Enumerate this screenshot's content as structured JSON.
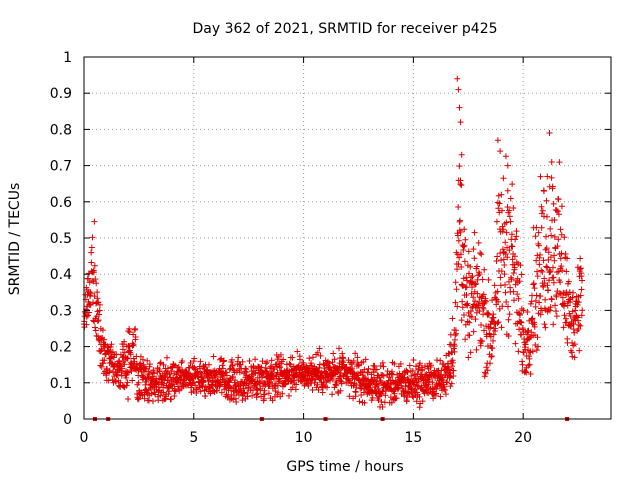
{
  "chart_data": {
    "type": "scatter",
    "title": "Day 362 of 2021, SRMTID for receiver p425",
    "xlabel": "GPS time / hours",
    "ylabel": "SRMTID / TECUs",
    "xlim": [
      0,
      24
    ],
    "ylim": [
      0,
      1
    ],
    "x_ticks": [
      0,
      5,
      10,
      15,
      20
    ],
    "x_tick_labels": [
      "0",
      "5",
      "10",
      "15",
      "20"
    ],
    "y_ticks": [
      0,
      0.1,
      0.2,
      0.3,
      0.4,
      0.5,
      0.6,
      0.7,
      0.8,
      0.9,
      1
    ],
    "y_tick_labels": [
      "0",
      "0.1",
      "0.2",
      "0.3",
      "0.4",
      "0.5",
      "0.6",
      "0.7",
      "0.8",
      "0.9",
      "1"
    ],
    "grid": true,
    "marker": "plus",
    "color": "#e00000",
    "series": [
      {
        "name": "SRMTID",
        "profile": [
          [
            0.0,
            0.3,
            0.06
          ],
          [
            0.2,
            0.32,
            0.08
          ],
          [
            0.4,
            0.42,
            0.1
          ],
          [
            0.6,
            0.3,
            0.12
          ],
          [
            0.8,
            0.18,
            0.05
          ],
          [
            1.5,
            0.13,
            0.05
          ],
          [
            2.1,
            0.17,
            0.08
          ],
          [
            3.0,
            0.1,
            0.05
          ],
          [
            5.0,
            0.12,
            0.04
          ],
          [
            7.0,
            0.1,
            0.05
          ],
          [
            8.5,
            0.12,
            0.05
          ],
          [
            10.0,
            0.13,
            0.04
          ],
          [
            12.0,
            0.12,
            0.05
          ],
          [
            13.5,
            0.09,
            0.04
          ],
          [
            15.0,
            0.1,
            0.05
          ],
          [
            16.4,
            0.11,
            0.04
          ],
          [
            16.9,
            0.22,
            0.1
          ],
          [
            17.1,
            0.6,
            0.25
          ],
          [
            17.4,
            0.3,
            0.1
          ],
          [
            18.0,
            0.35,
            0.15
          ],
          [
            18.5,
            0.22,
            0.1
          ],
          [
            19.0,
            0.45,
            0.2
          ],
          [
            19.4,
            0.5,
            0.2
          ],
          [
            19.8,
            0.3,
            0.15
          ],
          [
            20.1,
            0.18,
            0.06
          ],
          [
            20.5,
            0.35,
            0.15
          ],
          [
            21.0,
            0.45,
            0.2
          ],
          [
            21.4,
            0.5,
            0.2
          ],
          [
            21.8,
            0.4,
            0.18
          ],
          [
            22.2,
            0.25,
            0.08
          ],
          [
            22.7,
            0.38,
            0.12
          ]
        ],
        "outliers": [
          {
            "x": 17.0,
            "y": 0.94
          },
          {
            "x": 17.05,
            "y": 0.91
          },
          {
            "x": 17.1,
            "y": 0.86
          },
          {
            "x": 17.15,
            "y": 0.82
          },
          {
            "x": 17.2,
            "y": 0.73
          },
          {
            "x": 18.85,
            "y": 0.77
          },
          {
            "x": 18.95,
            "y": 0.74
          },
          {
            "x": 19.3,
            "y": 0.7
          },
          {
            "x": 20.95,
            "y": 0.63
          },
          {
            "x": 21.1,
            "y": 0.67
          },
          {
            "x": 21.2,
            "y": 0.79
          },
          {
            "x": 21.3,
            "y": 0.71
          }
        ],
        "zero_markers": [
          0.5,
          1.1,
          8.1,
          11.0,
          13.6,
          22.0
        ]
      }
    ]
  }
}
